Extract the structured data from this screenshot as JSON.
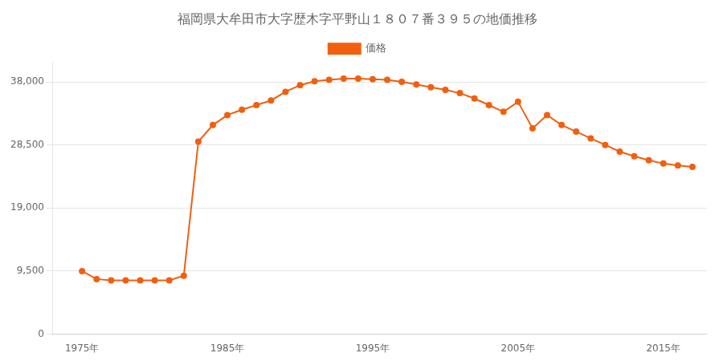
{
  "chart_data": {
    "type": "line",
    "title": "福岡県大牟田市大字歴木字平野山１８０７番３９５の地価推移",
    "x": [
      1975,
      1976,
      1977,
      1978,
      1979,
      1980,
      1981,
      1982,
      1983,
      1984,
      1985,
      1986,
      1987,
      1988,
      1989,
      1990,
      1991,
      1992,
      1993,
      1994,
      1995,
      1996,
      1997,
      1998,
      1999,
      2000,
      2001,
      2002,
      2003,
      2004,
      2005,
      2006,
      2007,
      2008,
      2009,
      2010,
      2011,
      2012,
      2013,
      2014,
      2015,
      2016,
      2017
    ],
    "series": [
      {
        "name": "価格",
        "color": "#f06010",
        "marker": "circle",
        "values": [
          9500,
          8300,
          8100,
          8100,
          8100,
          8100,
          8100,
          8800,
          29000,
          31500,
          33000,
          33800,
          34500,
          35200,
          36500,
          37500,
          38100,
          38300,
          38500,
          38500,
          38400,
          38300,
          38000,
          37600,
          37200,
          36800,
          36300,
          35500,
          34500,
          33500,
          35000,
          31000,
          33000,
          31500,
          30500,
          29500,
          28500,
          27500,
          26800,
          26200,
          25700,
          25400,
          25200
        ]
      }
    ],
    "xlim": [
      1973,
      2018
    ],
    "xticks": [
      {
        "value": 1975,
        "label": "1975年"
      },
      {
        "value": 1985,
        "label": "1985年"
      },
      {
        "value": 1995,
        "label": "1995年"
      },
      {
        "value": 2005,
        "label": "2005年"
      },
      {
        "value": 2015,
        "label": "2015年"
      }
    ],
    "ylim": [
      0,
      41000
    ],
    "yticks": [
      0,
      {
        "value": 9500,
        "label": "9,500"
      },
      {
        "value": 19000,
        "label": "19,000"
      },
      {
        "value": 28500,
        "label": "28,500"
      },
      {
        "value": 38000,
        "label": "38,000"
      }
    ],
    "grid": "y",
    "legend": "top"
  }
}
